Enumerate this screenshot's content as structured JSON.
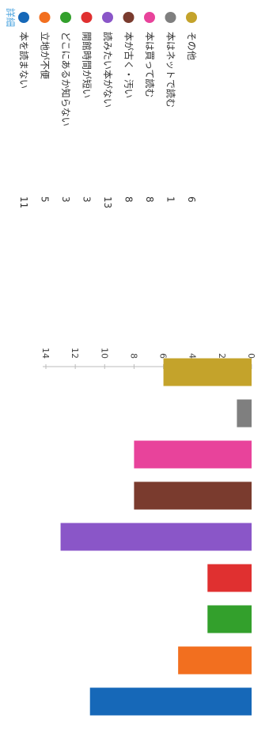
{
  "legend_header": "詳細",
  "chart_data": {
    "type": "bar",
    "categories": [
      "本を読まない",
      "立地が不便",
      "どこにあるか知らない",
      "開館時間が短い",
      "読みたい本がない",
      "本が古く・汚い",
      "本は買って読む",
      "本はネットで読む",
      "その他"
    ],
    "values": [
      11,
      5,
      3,
      3,
      13,
      8,
      8,
      1,
      6
    ],
    "colors": [
      "#1668b8",
      "#f26f1f",
      "#33a02c",
      "#e03030",
      "#8a56c8",
      "#7a3b2e",
      "#e8439b",
      "#7f7f7f",
      "#c4a32b"
    ],
    "ylim": [
      0,
      14
    ],
    "yticks": [
      0,
      2,
      4,
      6,
      8,
      10,
      12,
      14
    ],
    "legend_placement": "left",
    "grid": false,
    "orientation": "rotated 90° clockwise"
  }
}
